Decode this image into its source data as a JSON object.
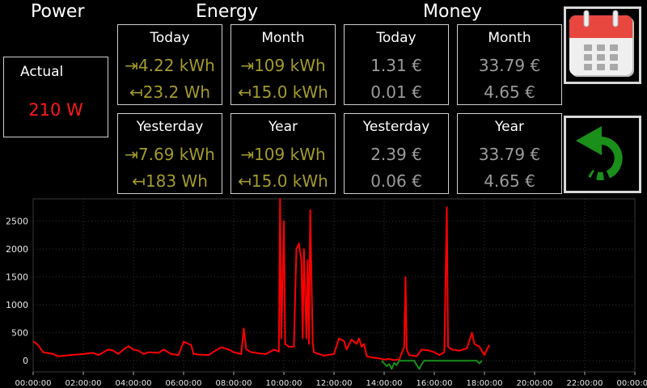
{
  "headers": {
    "power": "Power",
    "energy": "Energy",
    "money": "Money"
  },
  "actual": {
    "label": "Actual",
    "value": "210 W"
  },
  "energy": {
    "today": {
      "label": "Today",
      "import": "⇥4.22 kWh",
      "export": "↤23.2 Wh"
    },
    "month": {
      "label": "Month",
      "import": "⇥109 kWh",
      "export": "↤15.0 kWh"
    },
    "yesterday": {
      "label": "Yesterday",
      "import": "⇥7.69 kWh",
      "export": "↤183 Wh"
    },
    "year": {
      "label": "Year",
      "import": "⇥109 kWh",
      "export": "↤15.0 kWh"
    }
  },
  "money": {
    "today": {
      "label": "Today",
      "cost": "1.31 €",
      "credit": "0.01 €"
    },
    "month": {
      "label": "Month",
      "cost": "33.79 €",
      "credit": "4.65 €"
    },
    "yesterday": {
      "label": "Yesterday",
      "cost": "2.39 €",
      "credit": "0.06 €"
    },
    "year": {
      "label": "Year",
      "cost": "33.79 €",
      "credit": "4.65 €"
    }
  },
  "buttons": {
    "calendar_icon": "calendar-icon",
    "back_icon": "undo-arrow-icon"
  },
  "colors": {
    "energy": "#a39a2c",
    "money": "#9b9b9b",
    "actual": "#ff1a1a",
    "import": "#ff0000",
    "export": "#1a8f1a",
    "accent_button": "#e8473f",
    "back_arrow": "#1a8f1a"
  },
  "chart_data": {
    "type": "line",
    "ylim": [
      -200,
      2900
    ],
    "yticks": [
      0,
      500,
      1000,
      1500,
      2000,
      2500
    ],
    "xticks": [
      "00:00:00",
      "02:00:00",
      "04:00:00",
      "06:00:00",
      "08:00:00",
      "10:00:00",
      "12:00:00",
      "14:00:00",
      "16:00:00",
      "18:00:00",
      "20:00:00",
      "22:00:00",
      "00:00:00"
    ],
    "grid": true,
    "series": [
      {
        "color": "#ff0000",
        "points": [
          [
            0,
            350
          ],
          [
            0.2,
            280
          ],
          [
            0.4,
            150
          ],
          [
            0.8,
            120
          ],
          [
            1.0,
            80
          ],
          [
            1.5,
            100
          ],
          [
            2.0,
            120
          ],
          [
            2.4,
            140
          ],
          [
            2.6,
            100
          ],
          [
            3.0,
            200
          ],
          [
            3.2,
            180
          ],
          [
            3.4,
            120
          ],
          [
            3.6,
            200
          ],
          [
            3.8,
            260
          ],
          [
            4.0,
            200
          ],
          [
            4.2,
            180
          ],
          [
            4.4,
            120
          ],
          [
            4.6,
            150
          ],
          [
            5.0,
            140
          ],
          [
            5.2,
            200
          ],
          [
            5.5,
            120
          ],
          [
            5.8,
            100
          ],
          [
            6.0,
            340
          ],
          [
            6.3,
            280
          ],
          [
            6.4,
            120
          ],
          [
            6.6,
            110
          ],
          [
            7.0,
            100
          ],
          [
            7.2,
            160
          ],
          [
            7.5,
            240
          ],
          [
            7.8,
            200
          ],
          [
            8.0,
            150
          ],
          [
            8.3,
            120
          ],
          [
            8.4,
            580
          ],
          [
            8.5,
            200
          ],
          [
            8.7,
            150
          ],
          [
            8.9,
            140
          ],
          [
            9.0,
            130
          ],
          [
            9.3,
            120
          ],
          [
            9.6,
            200
          ],
          [
            9.8,
            160
          ],
          [
            9.85,
            2900
          ],
          [
            9.9,
            400
          ],
          [
            10.0,
            2500
          ],
          [
            10.05,
            300
          ],
          [
            10.2,
            250
          ],
          [
            10.4,
            250
          ],
          [
            10.5,
            2000
          ],
          [
            10.6,
            2100
          ],
          [
            10.7,
            1800
          ],
          [
            10.75,
            400
          ],
          [
            10.8,
            2000
          ],
          [
            10.85,
            1200
          ],
          [
            10.9,
            400
          ],
          [
            10.95,
            1800
          ],
          [
            11.0,
            300
          ],
          [
            11.05,
            2700
          ],
          [
            11.1,
            1500
          ],
          [
            11.15,
            300
          ],
          [
            11.2,
            150
          ],
          [
            11.4,
            120
          ],
          [
            11.6,
            90
          ],
          [
            12.0,
            120
          ],
          [
            12.2,
            400
          ],
          [
            12.4,
            350
          ],
          [
            12.5,
            200
          ],
          [
            12.7,
            380
          ],
          [
            12.9,
            300
          ],
          [
            13.0,
            400
          ],
          [
            13.1,
            250
          ],
          [
            13.2,
            300
          ],
          [
            13.3,
            80
          ],
          [
            13.5,
            60
          ],
          [
            13.8,
            40
          ],
          [
            14.0,
            20
          ],
          [
            14.2,
            30
          ],
          [
            14.4,
            10
          ],
          [
            14.6,
            20
          ],
          [
            14.8,
            250
          ],
          [
            14.85,
            1500
          ],
          [
            14.9,
            200
          ],
          [
            15.0,
            100
          ],
          [
            15.3,
            80
          ],
          [
            15.5,
            200
          ],
          [
            15.8,
            180
          ],
          [
            16.0,
            150
          ],
          [
            16.2,
            100
          ],
          [
            16.4,
            150
          ],
          [
            16.5,
            2750
          ],
          [
            16.55,
            250
          ],
          [
            16.7,
            200
          ],
          [
            17.0,
            180
          ],
          [
            17.3,
            220
          ],
          [
            17.5,
            500
          ],
          [
            17.6,
            300
          ],
          [
            17.8,
            250
          ],
          [
            18.0,
            100
          ],
          [
            18.1,
            200
          ],
          [
            18.2,
            280
          ]
        ]
      },
      {
        "color": "#1a8f1a",
        "points": [
          [
            13.9,
            0
          ],
          [
            14.0,
            -50
          ],
          [
            14.1,
            -100
          ],
          [
            14.2,
            -60
          ],
          [
            14.3,
            -150
          ],
          [
            14.4,
            -40
          ],
          [
            14.5,
            -80
          ],
          [
            14.6,
            0
          ],
          [
            15.2,
            0
          ],
          [
            15.3,
            -80
          ],
          [
            15.4,
            -150
          ],
          [
            15.5,
            -60
          ],
          [
            15.6,
            0
          ],
          [
            17.7,
            0
          ],
          [
            17.8,
            -50
          ],
          [
            17.9,
            0
          ]
        ]
      }
    ]
  }
}
